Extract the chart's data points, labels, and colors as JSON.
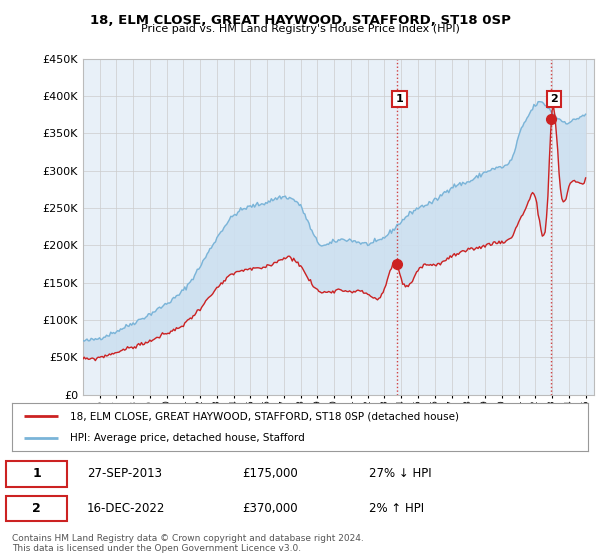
{
  "title": "18, ELM CLOSE, GREAT HAYWOOD, STAFFORD, ST18 0SP",
  "subtitle": "Price paid vs. HM Land Registry's House Price Index (HPI)",
  "ylim": [
    0,
    450000
  ],
  "yticks": [
    0,
    50000,
    100000,
    150000,
    200000,
    250000,
    300000,
    350000,
    400000,
    450000
  ],
  "hpi_color": "#7ab4d8",
  "price_color": "#cc2222",
  "fill_color": "#cde0f0",
  "vline_color": "#cc2222",
  "grid_color": "#cccccc",
  "background_color": "#ffffff",
  "plot_bg_color": "#e8f0f8",
  "legend_label_red": "18, ELM CLOSE, GREAT HAYWOOD, STAFFORD, ST18 0SP (detached house)",
  "legend_label_blue": "HPI: Average price, detached house, Stafford",
  "annotation1_date": "27-SEP-2013",
  "annotation1_price": "£175,000",
  "annotation1_pct": "27% ↓ HPI",
  "annotation2_date": "16-DEC-2022",
  "annotation2_price": "£370,000",
  "annotation2_pct": "2% ↑ HPI",
  "footer": "Contains HM Land Registry data © Crown copyright and database right 2024.\nThis data is licensed under the Open Government Licence v3.0.",
  "sale1_year": 2013.75,
  "sale1_price": 175000,
  "sale2_year": 2022.96,
  "sale2_price": 370000,
  "xlim_left": 1995.0,
  "xlim_right": 2025.5
}
